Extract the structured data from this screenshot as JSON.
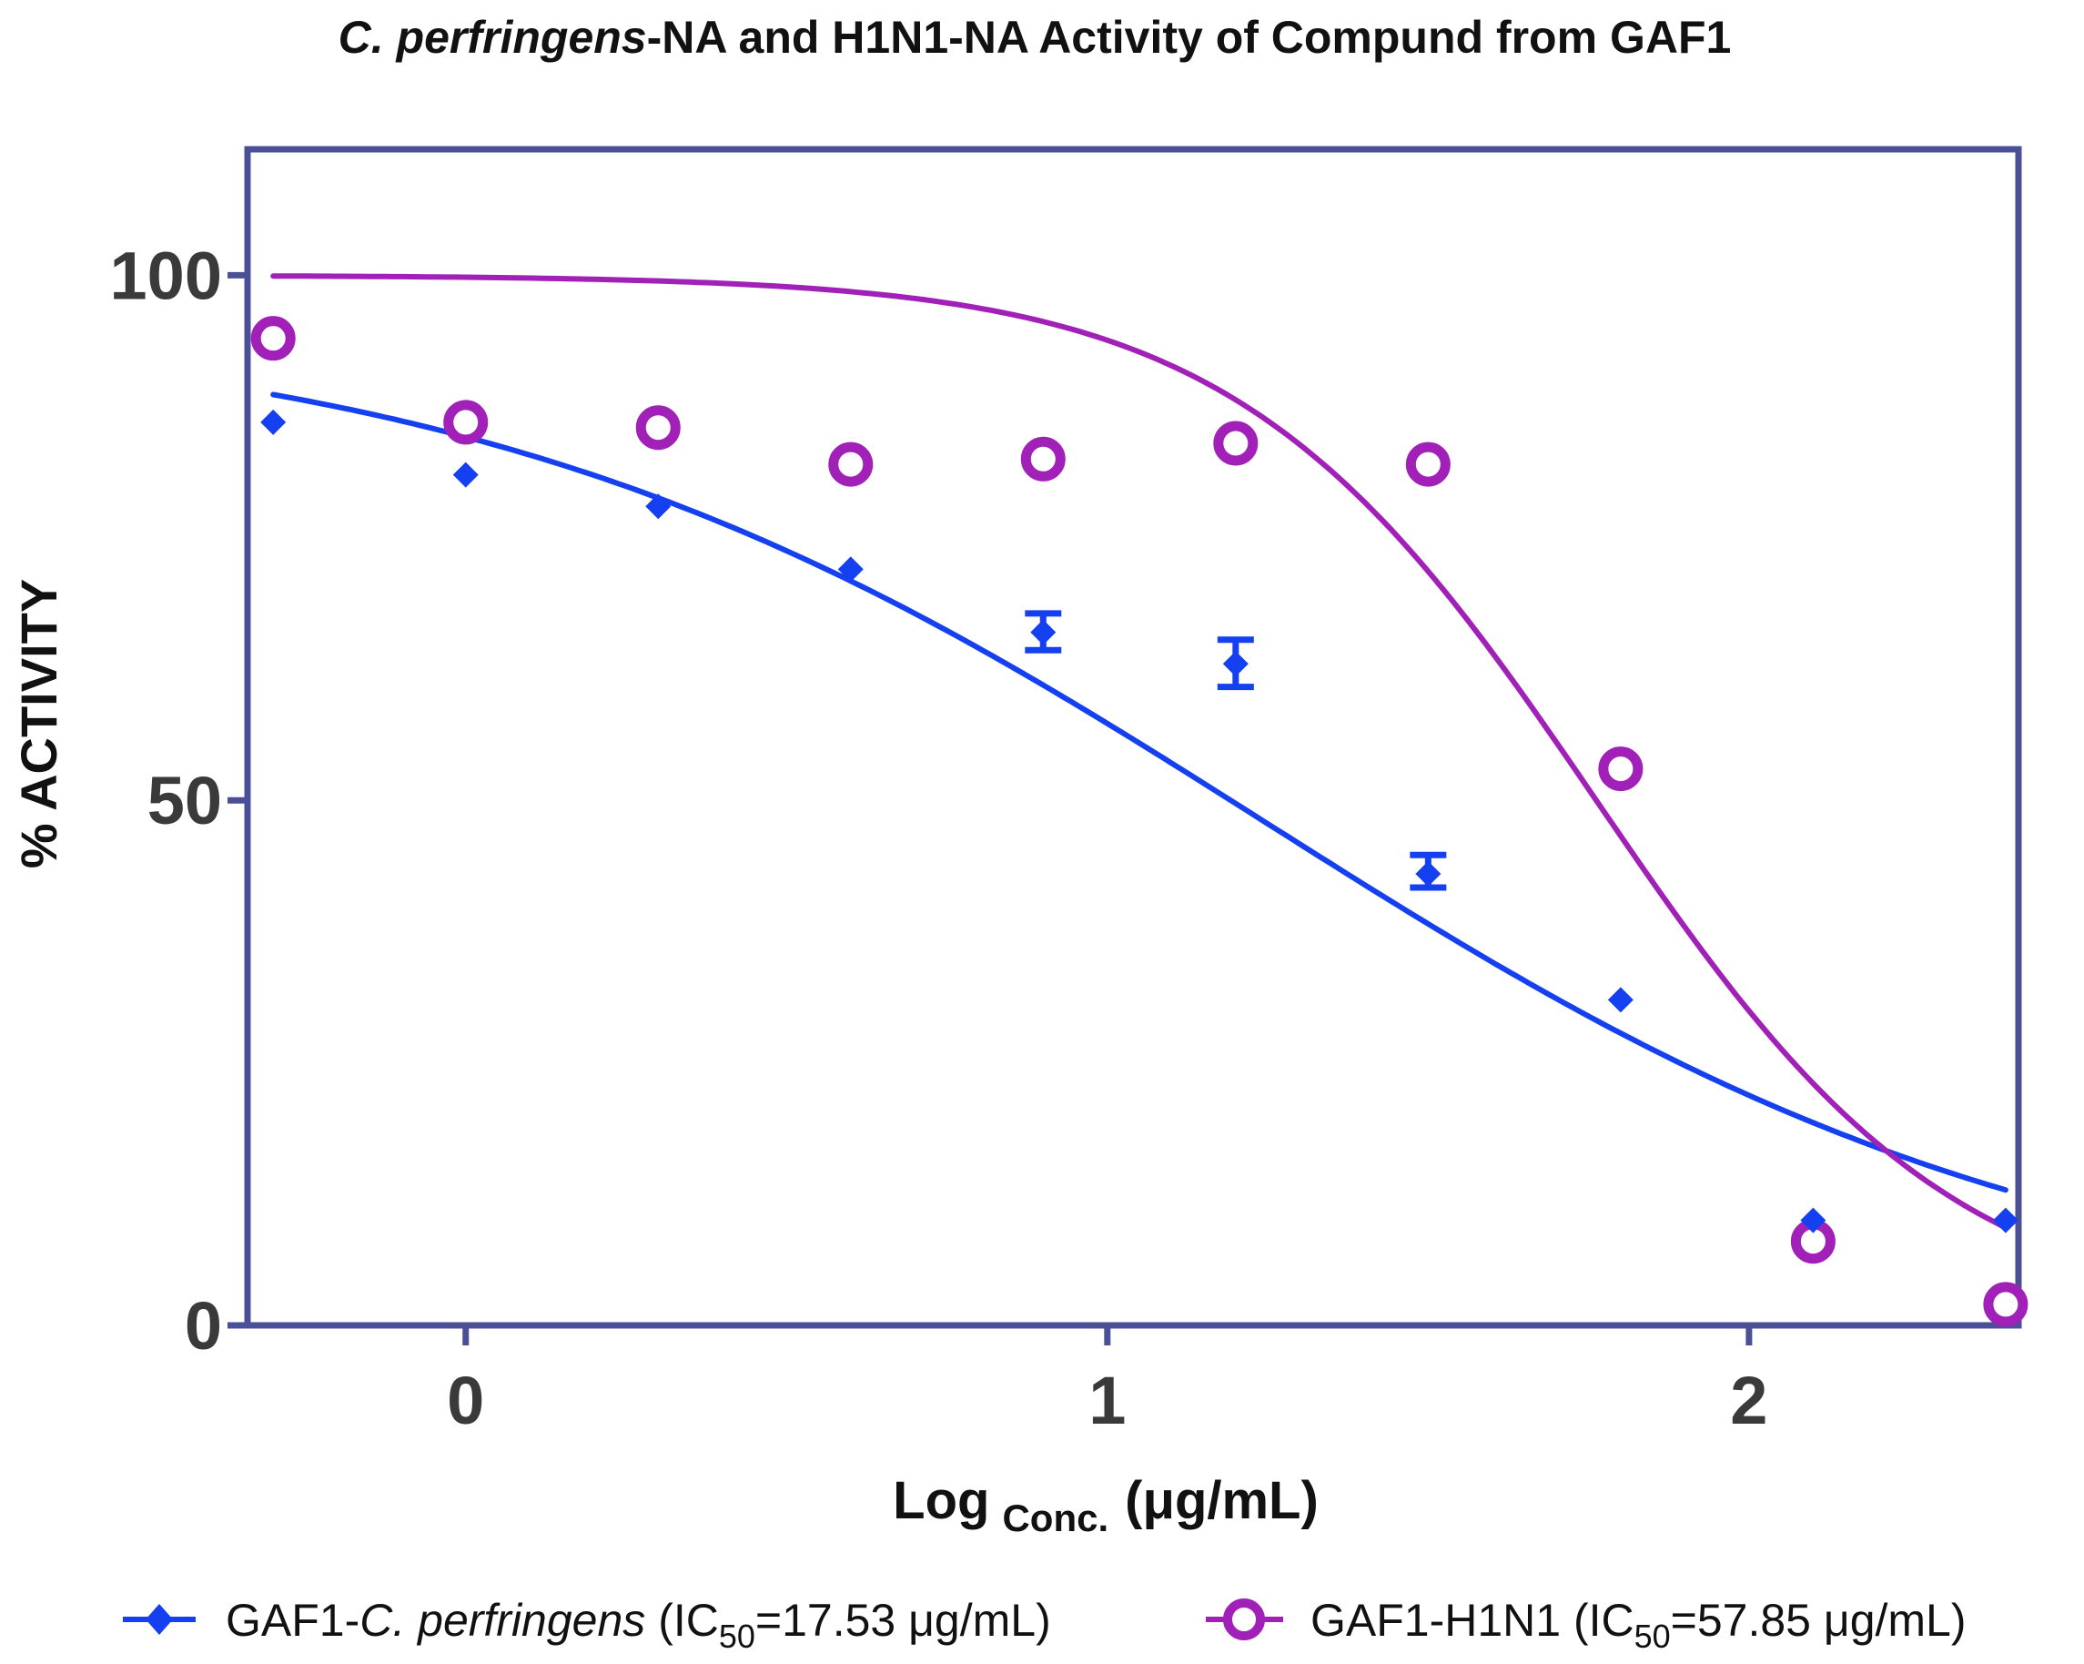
{
  "chart_data": {
    "type": "line",
    "title": {
      "italic_part": "C. perfringens",
      "rest": "-NA and H1N1-NA Activity of Compund from GAF1"
    },
    "xlabel": {
      "main": "Log",
      "subscript": "Conc.",
      "unit": "(μg/mL)"
    },
    "ylabel": "% ACTIVITY",
    "xlim": [
      -0.34,
      2.42
    ],
    "ylim": [
      0,
      112
    ],
    "xticks": [
      0,
      1,
      2
    ],
    "xtick_labels": [
      "0",
      "1",
      "2"
    ],
    "yticks": [
      0,
      50,
      100
    ],
    "ytick_labels": [
      "0",
      "50",
      "100"
    ],
    "grid": false,
    "legend_position": "bottom",
    "series": [
      {
        "name": "GAF1-C. perfringens",
        "legend": {
          "prefix": "GAF1-",
          "italic": "C. perfringens",
          "ic_open": " (IC",
          "ic_sub": "50",
          "ic_value": "=17.53 μg/mL)"
        },
        "color": "#1440f0",
        "marker": "diamond",
        "x": [
          -0.3,
          0.0,
          0.3,
          0.6,
          0.9,
          1.2,
          1.5,
          1.8,
          2.1,
          2.4
        ],
        "y": [
          86,
          81,
          78,
          72,
          66,
          63,
          43,
          31,
          10,
          10
        ],
        "error_low": [
          null,
          null,
          null,
          null,
          64.3,
          60.8,
          41.7,
          null,
          null,
          null
        ],
        "error_high": [
          null,
          null,
          null,
          null,
          67.8,
          65.3,
          44.8,
          null,
          null,
          null
        ],
        "fit": {
          "top": 96,
          "bottom": 0,
          "log_ic50": 1.244,
          "hill": 0.7
        }
      },
      {
        "name": "GAF1-H1N1",
        "legend": {
          "prefix": "GAF1-H1N1",
          "italic": "",
          "ic_open": " (IC",
          "ic_sub": "50",
          "ic_value": "=57.85 μg/mL)"
        },
        "color": "#a020b8",
        "marker": "open-circle",
        "x": [
          -0.3,
          0.0,
          0.3,
          0.6,
          0.9,
          1.2,
          1.5,
          1.8,
          2.1,
          2.4
        ],
        "y": [
          94,
          86,
          85.5,
          82,
          82.5,
          84,
          82,
          53,
          8,
          2
        ],
        "fit": {
          "top": 100,
          "bottom": 0,
          "log_ic50": 1.762,
          "hill": 1.55
        }
      }
    ]
  }
}
